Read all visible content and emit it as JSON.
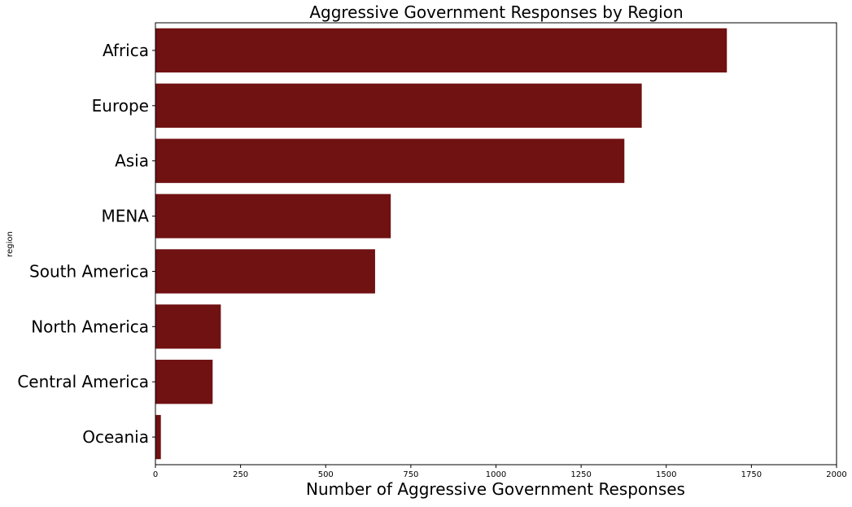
{
  "chart_data": {
    "type": "bar",
    "orientation": "horizontal",
    "title": "Aggressive Government Responses by Region",
    "xlabel": "Number of Aggressive Government Responses",
    "ylabel": "region",
    "categories": [
      "Africa",
      "Europe",
      "Asia",
      "MENA",
      "South America",
      "North America",
      "Central America",
      "Oceania"
    ],
    "values": [
      1678,
      1428,
      1377,
      691,
      645,
      192,
      168,
      16
    ],
    "xlim": [
      0,
      2000
    ],
    "xticks": [
      "0",
      "250",
      "500",
      "750",
      "1000",
      "1250",
      "1500",
      "1750",
      "2000"
    ],
    "grid": false,
    "legend": "none",
    "bar_color": "#701112"
  }
}
